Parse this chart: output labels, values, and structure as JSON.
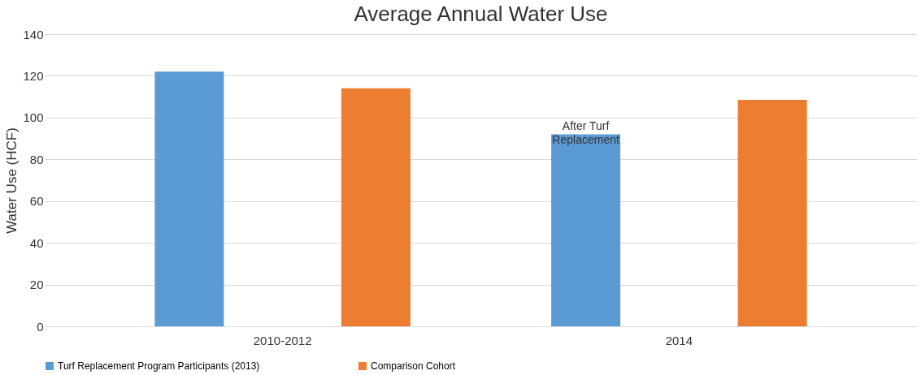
{
  "chart_data": {
    "type": "bar",
    "title": "Average Annual Water Use",
    "ylabel": "Water Use (HCF)",
    "categories": [
      "2010-2012",
      "2014"
    ],
    "series": [
      {
        "name": "Turf Replacement Program Participants (2013)",
        "color": "#5b9bd5",
        "values": [
          122,
          92
        ]
      },
      {
        "name": "Comparison Cohort",
        "color": "#ed7d31",
        "values": [
          114,
          108.5
        ]
      }
    ],
    "ylim": [
      0,
      140
    ],
    "yticks": [
      0,
      20,
      40,
      60,
      80,
      100,
      120,
      140
    ],
    "grid": "y",
    "legend": "bottom",
    "annotations": [
      "After Turf Replacement"
    ]
  }
}
